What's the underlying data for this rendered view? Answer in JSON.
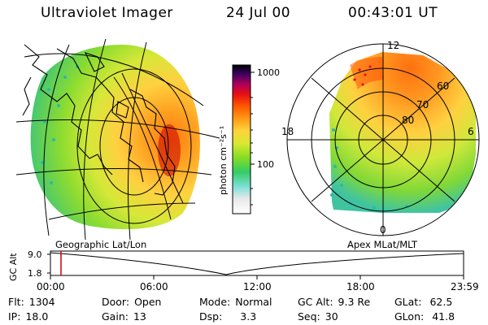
{
  "header": {
    "title": "Ultraviolet Imager",
    "date": "24 Jul 00",
    "time": "00:43:01 UT"
  },
  "colors": {
    "colorbar_stops": [
      "#ffffff",
      "#e8e8e8",
      "#7fe0d8",
      "#33cc66",
      "#88dd22",
      "#d8e832",
      "#ffd23c",
      "#ff9a14",
      "#ff5a00",
      "#e81010",
      "#b0005a",
      "#3a0060",
      "#000000"
    ],
    "background": "#ffffff",
    "track_marker": "#cc0000"
  },
  "colorbar": {
    "unit_label": "photon cm⁻²s⁻¹",
    "tick_1000": "1000",
    "tick_100": "100"
  },
  "left_panel": {
    "label": "Geographic Lat/Lon"
  },
  "right_panel": {
    "label": "Apex MLat/MLT",
    "mlt_12": "12",
    "mlt_18": "18",
    "mlt_6": "6",
    "mlt_0": "0",
    "lat_60": "60",
    "lat_70": "70",
    "lat_80": "80"
  },
  "altitude_plot": {
    "ylabel": "GC Alt",
    "ymax": "9.0",
    "ymin": "1.8",
    "xticks": [
      "00:00",
      "06:00",
      "12:00",
      "18:00",
      "23:59"
    ]
  },
  "info": {
    "flt_label": "Flt:",
    "flt_value": "1304",
    "ip_label": "IP:",
    "ip_value": "18.0",
    "door_label": "Door:",
    "door_value": "Open",
    "gain_label": "Gain:",
    "gain_value": "13",
    "mode_label": "Mode:",
    "mode_value": "Normal",
    "dsp_label": "Dsp:",
    "dsp_value": "3.3",
    "gcalt_label": "GC Alt:",
    "gcalt_value": "9.3 Re",
    "seq_label": "Seq:",
    "seq_value": "30",
    "glat_label": "GLat:",
    "glat_value": "62.5",
    "glon_label": "GLon:",
    "glon_value": "41.8"
  }
}
